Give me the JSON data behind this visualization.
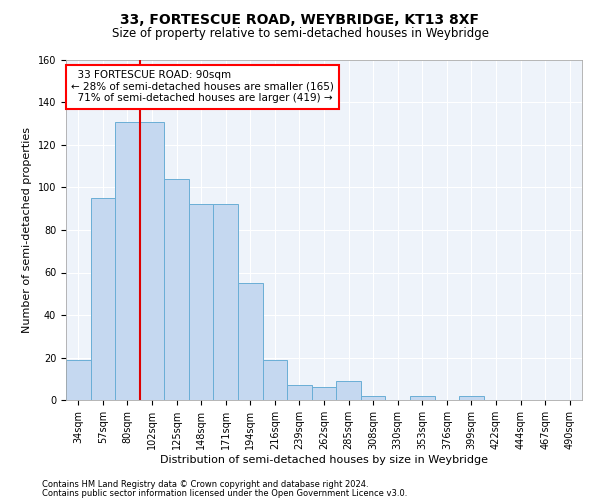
{
  "title1": "33, FORTESCUE ROAD, WEYBRIDGE, KT13 8XF",
  "title2": "Size of property relative to semi-detached houses in Weybridge",
  "xlabel": "Distribution of semi-detached houses by size in Weybridge",
  "ylabel": "Number of semi-detached properties",
  "footnote1": "Contains HM Land Registry data © Crown copyright and database right 2024.",
  "footnote2": "Contains public sector information licensed under the Open Government Licence v3.0.",
  "categories": [
    "34sqm",
    "57sqm",
    "80sqm",
    "102sqm",
    "125sqm",
    "148sqm",
    "171sqm",
    "194sqm",
    "216sqm",
    "239sqm",
    "262sqm",
    "285sqm",
    "308sqm",
    "330sqm",
    "353sqm",
    "376sqm",
    "399sqm",
    "422sqm",
    "444sqm",
    "467sqm",
    "490sqm"
  ],
  "values": [
    19,
    95,
    131,
    131,
    104,
    92,
    92,
    55,
    19,
    7,
    6,
    9,
    2,
    0,
    2,
    0,
    2,
    0,
    0,
    0,
    0
  ],
  "bar_color": "#c5d8f0",
  "bar_edge_color": "#6aaed6",
  "vline_color": "#dd0000",
  "vline_x": 2.5,
  "property_sqm": 90,
  "pct_smaller": 28,
  "pct_larger": 71,
  "count_smaller": 165,
  "count_larger": 419,
  "ylim": [
    0,
    160
  ],
  "yticks": [
    0,
    20,
    40,
    60,
    80,
    100,
    120,
    140,
    160
  ],
  "background_color": "#eef3fa",
  "grid_color": "#ffffff",
  "title1_fontsize": 10,
  "title2_fontsize": 8.5,
  "tick_fontsize": 7,
  "ylabel_fontsize": 8,
  "xlabel_fontsize": 8,
  "footnote_fontsize": 6
}
